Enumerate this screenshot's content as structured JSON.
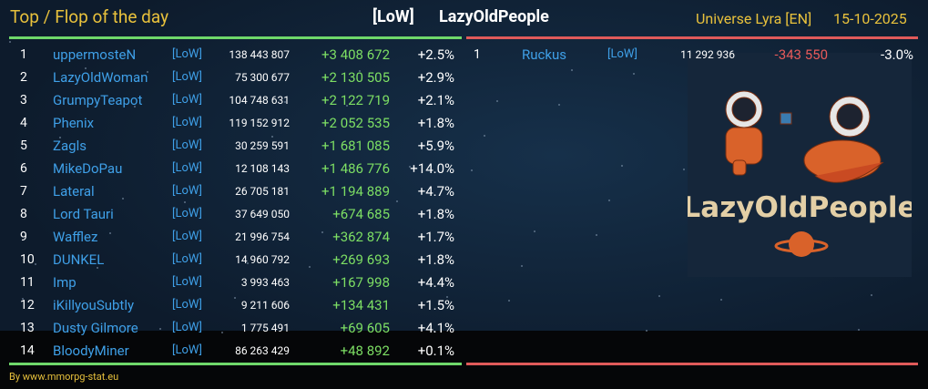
{
  "header": {
    "title": "Top / Flop of the day",
    "tag": "[LoW]",
    "alliance": "LazyOldPeople",
    "universe": "Universe Lyra [EN]",
    "date": "15-10-2025"
  },
  "top": {
    "rows": [
      [
        "1",
        "uppermosteN",
        "[LoW]",
        "138 443 807",
        "+3 408 672",
        "+2.5%"
      ],
      [
        "2",
        "LazyOldWoman",
        "[LoW]",
        "75 300 677",
        "+2 130 505",
        "+2.9%"
      ],
      [
        "3",
        "GrumpyTeapot",
        "[LoW]",
        "104 748 631",
        "+2 122 719",
        "+2.1%"
      ],
      [
        "4",
        "Phenix",
        "[LoW]",
        "119 152 912",
        "+2 052 535",
        "+1.8%"
      ],
      [
        "5",
        "Zagls",
        "[LoW]",
        "30 259 591",
        "+1 681 085",
        "+5.9%"
      ],
      [
        "6",
        "MikeDoPau",
        "[LoW]",
        "12 108 143",
        "+1 486 776",
        "+14.0%"
      ],
      [
        "7",
        "Lateral",
        "[LoW]",
        "26 705 181",
        "+1 194 889",
        "+4.7%"
      ],
      [
        "8",
        "Lord Tauri",
        "[LoW]",
        "37 649 050",
        "+674 685",
        "+1.8%"
      ],
      [
        "9",
        "Wafflez",
        "[LoW]",
        "21 996 754",
        "+362 874",
        "+1.7%"
      ],
      [
        "10",
        "DUNKEL",
        "[LoW]",
        "14 960 792",
        "+269 693",
        "+1.8%"
      ],
      [
        "11",
        "Imp",
        "[LoW]",
        "3 993 463",
        "+167 998",
        "+4.4%"
      ],
      [
        "12",
        "iKillyouSubtly",
        "[LoW]",
        "9 211 606",
        "+134 431",
        "+1.5%"
      ],
      [
        "13",
        "Dusty Gilmore",
        "[LoW]",
        "1 775 491",
        "+69 605",
        "+4.1%"
      ],
      [
        "14",
        "BloodyMiner",
        "[LoW]",
        "86 263 429",
        "+48 892",
        "+0.1%"
      ]
    ]
  },
  "flop": {
    "rows": [
      [
        "1",
        "Ruckus",
        "[LoW]",
        "11 292 936",
        "-343 550",
        "-3.0%"
      ]
    ]
  },
  "logo": {
    "text": "LazyOldPeople"
  },
  "footer": {
    "credit": "By www.mmorpg-stat.eu"
  }
}
